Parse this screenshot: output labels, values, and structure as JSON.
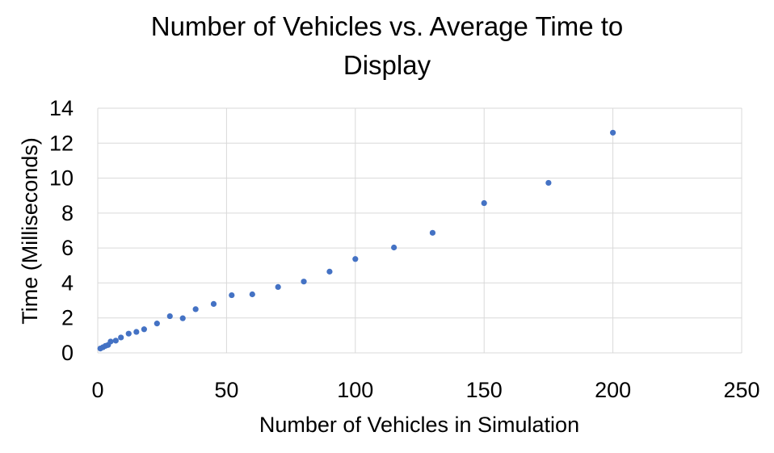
{
  "chart_data": {
    "type": "scatter",
    "title_lines": [
      "Number of Vehicles vs. Average Time to",
      "Display"
    ],
    "xlabel": "Number of Vehicles in Simulation",
    "ylabel": "Time (Milliseconds)",
    "xlim": [
      0,
      250
    ],
    "ylim": [
      0,
      14
    ],
    "xticks": [
      0,
      50,
      100,
      150,
      200,
      250
    ],
    "yticks": [
      0,
      2,
      4,
      6,
      8,
      10,
      12,
      14
    ],
    "grid": true,
    "legend": "none",
    "series": [
      {
        "name": "Average Time to Display",
        "color": "#4472C4",
        "points": [
          [
            1,
            0.25
          ],
          [
            2,
            0.32
          ],
          [
            3,
            0.4
          ],
          [
            4,
            0.45
          ],
          [
            5,
            0.65
          ],
          [
            7,
            0.7
          ],
          [
            9,
            0.88
          ],
          [
            12,
            1.1
          ],
          [
            15,
            1.2
          ],
          [
            18,
            1.35
          ],
          [
            23,
            1.68
          ],
          [
            28,
            2.1
          ],
          [
            33,
            1.98
          ],
          [
            38,
            2.5
          ],
          [
            45,
            2.8
          ],
          [
            52,
            3.3
          ],
          [
            60,
            3.35
          ],
          [
            70,
            3.77
          ],
          [
            80,
            4.08
          ],
          [
            90,
            4.65
          ],
          [
            100,
            5.37
          ],
          [
            115,
            6.03
          ],
          [
            130,
            6.87
          ],
          [
            150,
            8.57
          ],
          [
            175,
            9.73
          ],
          [
            200,
            12.6
          ]
        ]
      }
    ]
  },
  "colors": {
    "marker": "#4472C4",
    "grid": "#D9D9D9",
    "text": "#000000",
    "background": "#FFFFFF"
  }
}
